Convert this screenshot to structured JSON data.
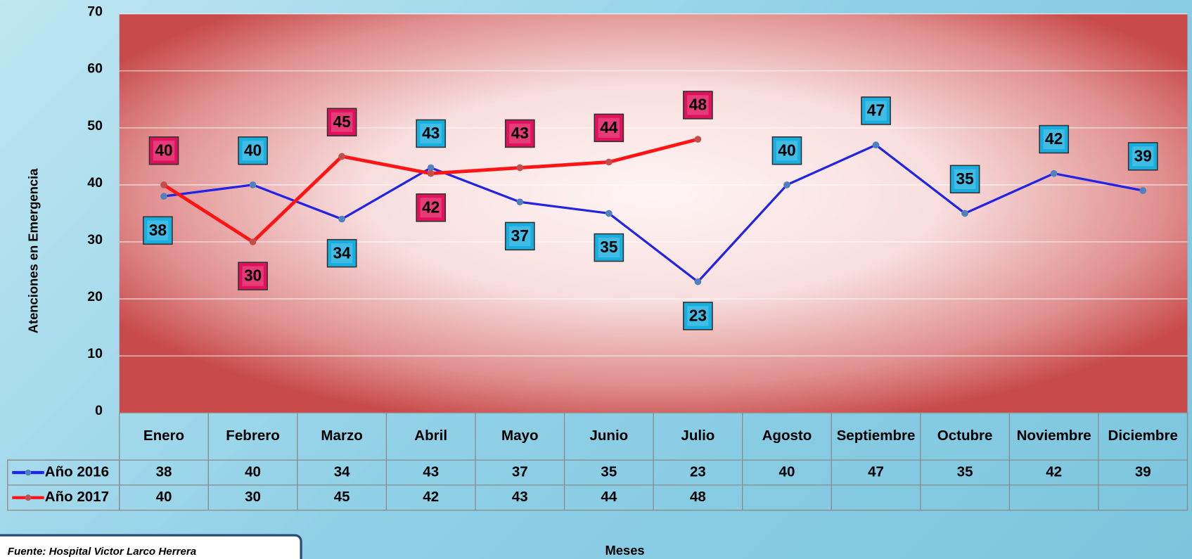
{
  "chart_data": {
    "type": "line",
    "y_label": "Atenciones en Emergencia",
    "x_label": "Meses",
    "source": "Fuente:  Hospital Victor Larco Herrera",
    "categories": [
      "Enero",
      "Febrero",
      "Marzo",
      "Abril",
      "Mayo",
      "Junio",
      "Julio",
      "Agosto",
      "Septiembre",
      "Octubre",
      "Noviembre",
      "Diciembre"
    ],
    "series": [
      {
        "name": "Año 2016",
        "color": "#2323e6",
        "label_color": "#18aee0",
        "values": [
          38,
          40,
          34,
          43,
          37,
          35,
          23,
          40,
          47,
          35,
          42,
          39
        ]
      },
      {
        "name": "Año 2017",
        "color": "#ff1414",
        "label_color": "#e0125c",
        "values": [
          40,
          30,
          45,
          42,
          43,
          44,
          48,
          null,
          null,
          null,
          null,
          null
        ]
      }
    ],
    "ylim": [
      0,
      70
    ],
    "yticks": [
      0,
      10,
      20,
      30,
      40,
      50,
      60,
      70
    ],
    "grid": true
  }
}
